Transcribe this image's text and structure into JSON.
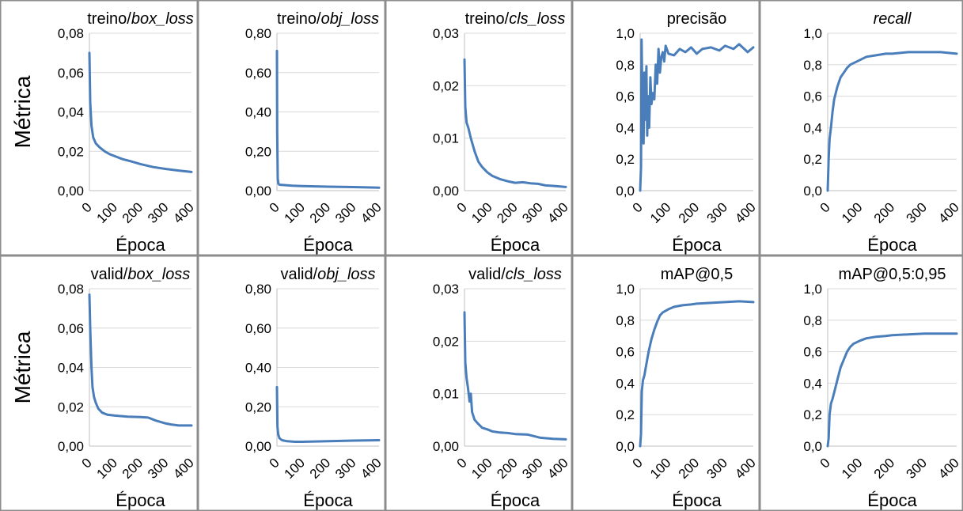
{
  "figure": {
    "xlabel": "Época",
    "ylabel": "Métrica"
  },
  "chart_data": [
    {
      "type": "line",
      "title": "treino/box_loss",
      "title_parts": [
        {
          "text": "treino/",
          "italic": false
        },
        {
          "text": "box_loss",
          "italic": true
        }
      ],
      "xlabel": "Época",
      "ylabel": "Métrica",
      "xlim": [
        0,
        400
      ],
      "xticks": [
        "0",
        "100",
        "200",
        "300",
        "400"
      ],
      "ylim": [
        0,
        0.08
      ],
      "yticks": [
        "0,00",
        "0,02",
        "0,04",
        "0,06",
        "0,08"
      ],
      "grid": true,
      "series": [
        {
          "x": [
            0,
            3,
            8,
            15,
            25,
            40,
            60,
            80,
            100,
            130,
            160,
            200,
            250,
            300,
            350,
            400
          ],
          "y": [
            0.07,
            0.045,
            0.033,
            0.027,
            0.024,
            0.022,
            0.02,
            0.0185,
            0.0175,
            0.016,
            0.015,
            0.0135,
            0.012,
            0.011,
            0.0102,
            0.0095
          ]
        }
      ]
    },
    {
      "type": "line",
      "title": "treino/obj_loss",
      "title_parts": [
        {
          "text": "treino/",
          "italic": false
        },
        {
          "text": "obj_loss",
          "italic": true
        }
      ],
      "xlabel": "Época",
      "ylabel": "",
      "xlim": [
        0,
        400
      ],
      "xticks": [
        "0",
        "100",
        "200",
        "300",
        "400"
      ],
      "ylim": [
        0,
        0.8
      ],
      "yticks": [
        "0,00",
        "0,20",
        "0,40",
        "0,60",
        "0,80"
      ],
      "grid": true,
      "series": [
        {
          "x": [
            0,
            1,
            3,
            6,
            10,
            30,
            60,
            100,
            200,
            300,
            400
          ],
          "y": [
            0.71,
            0.3,
            0.06,
            0.035,
            0.03,
            0.028,
            0.025,
            0.023,
            0.02,
            0.018,
            0.015
          ]
        }
      ]
    },
    {
      "type": "line",
      "title": "treino/cls_loss",
      "title_parts": [
        {
          "text": "treino/",
          "italic": false
        },
        {
          "text": "cls_loss",
          "italic": true
        }
      ],
      "xlabel": "Época",
      "ylabel": "",
      "xlim": [
        0,
        400
      ],
      "xticks": [
        "0",
        "100",
        "200",
        "300",
        "400"
      ],
      "ylim": [
        0,
        0.03
      ],
      "yticks": [
        "0,00",
        "0,01",
        "0,02",
        "0,03"
      ],
      "grid": true,
      "series": [
        {
          "x": [
            0,
            3,
            8,
            15,
            25,
            40,
            55,
            70,
            90,
            110,
            140,
            170,
            200,
            230,
            260,
            290,
            320,
            350,
            400
          ],
          "y": [
            0.025,
            0.016,
            0.013,
            0.012,
            0.01,
            0.0075,
            0.0055,
            0.0045,
            0.0035,
            0.0028,
            0.0022,
            0.0018,
            0.0015,
            0.0016,
            0.0014,
            0.0013,
            0.001,
            0.0009,
            0.0007
          ]
        }
      ]
    },
    {
      "type": "line",
      "title": "precisão",
      "title_parts": [
        {
          "text": "precisão",
          "italic": false
        }
      ],
      "xlabel": "Época",
      "ylabel": "",
      "xlim": [
        0,
        400
      ],
      "xticks": [
        "0",
        "100",
        "200",
        "300",
        "400"
      ],
      "ylim": [
        0,
        1.0
      ],
      "yticks": [
        "0,0",
        "0,2",
        "0,4",
        "0,6",
        "0,8",
        "1,0"
      ],
      "grid": true,
      "series": [
        {
          "x": [
            0,
            3,
            5,
            8,
            12,
            15,
            18,
            22,
            25,
            28,
            32,
            36,
            40,
            45,
            50,
            55,
            60,
            65,
            70,
            75,
            80,
            85,
            90,
            100,
            120,
            140,
            160,
            180,
            200,
            220,
            250,
            280,
            300,
            330,
            350,
            380,
            400
          ],
          "y": [
            0.0,
            0.15,
            0.96,
            0.55,
            0.3,
            0.75,
            0.45,
            0.79,
            0.35,
            0.6,
            0.4,
            0.72,
            0.55,
            0.62,
            0.58,
            0.8,
            0.68,
            0.9,
            0.75,
            0.85,
            0.88,
            0.82,
            0.92,
            0.87,
            0.86,
            0.9,
            0.88,
            0.91,
            0.87,
            0.9,
            0.91,
            0.89,
            0.92,
            0.9,
            0.93,
            0.88,
            0.91
          ]
        }
      ]
    },
    {
      "type": "line",
      "title": "recall",
      "title_parts": [
        {
          "text": "recall",
          "italic": true
        }
      ],
      "xlabel": "Época",
      "ylabel": "",
      "xlim": [
        0,
        400
      ],
      "xticks": [
        "0",
        "100",
        "200",
        "300",
        "400"
      ],
      "ylim": [
        0,
        1.0
      ],
      "yticks": [
        "0,0",
        "0,2",
        "0,4",
        "0,6",
        "0,8",
        "1,0"
      ],
      "grid": true,
      "series": [
        {
          "x": [
            0,
            3,
            6,
            10,
            15,
            20,
            25,
            30,
            40,
            50,
            60,
            70,
            80,
            100,
            120,
            150,
            180,
            200,
            250,
            300,
            350,
            400
          ],
          "y": [
            0.0,
            0.2,
            0.33,
            0.4,
            0.5,
            0.58,
            0.62,
            0.66,
            0.72,
            0.75,
            0.78,
            0.8,
            0.81,
            0.83,
            0.85,
            0.86,
            0.87,
            0.87,
            0.88,
            0.88,
            0.88,
            0.87
          ]
        }
      ]
    },
    {
      "type": "line",
      "title": "valid/box_loss",
      "title_parts": [
        {
          "text": "valid/",
          "italic": false
        },
        {
          "text": "box_loss",
          "italic": true
        }
      ],
      "xlabel": "Época",
      "ylabel": "Métrica",
      "xlim": [
        0,
        400
      ],
      "xticks": [
        "0",
        "100",
        "200",
        "300",
        "400"
      ],
      "ylim": [
        0,
        0.08
      ],
      "yticks": [
        "0,00",
        "0,02",
        "0,04",
        "0,06",
        "0,08"
      ],
      "grid": true,
      "series": [
        {
          "x": [
            0,
            3,
            8,
            12,
            18,
            25,
            35,
            50,
            70,
            100,
            150,
            200,
            230,
            260,
            300,
            320,
            350,
            400
          ],
          "y": [
            0.077,
            0.06,
            0.04,
            0.03,
            0.025,
            0.022,
            0.019,
            0.017,
            0.016,
            0.0155,
            0.015,
            0.0148,
            0.0145,
            0.013,
            0.0115,
            0.011,
            0.0105,
            0.0105
          ]
        }
      ]
    },
    {
      "type": "line",
      "title": "valid/obj_loss",
      "title_parts": [
        {
          "text": "valid/",
          "italic": false
        },
        {
          "text": "obj_loss",
          "italic": true
        }
      ],
      "xlabel": "Época",
      "ylabel": "",
      "xlim": [
        0,
        400
      ],
      "xticks": [
        "0",
        "100",
        "200",
        "300",
        "400"
      ],
      "ylim": [
        0,
        0.8
      ],
      "yticks": [
        "0,00",
        "0,20",
        "0,40",
        "0,60",
        "0,80"
      ],
      "grid": true,
      "series": [
        {
          "x": [
            0,
            2,
            5,
            10,
            20,
            40,
            70,
            100,
            200,
            300,
            400
          ],
          "y": [
            0.3,
            0.1,
            0.06,
            0.04,
            0.03,
            0.025,
            0.022,
            0.022,
            0.025,
            0.028,
            0.03
          ]
        }
      ]
    },
    {
      "type": "line",
      "title": "valid/cls_loss",
      "title_parts": [
        {
          "text": "valid/",
          "italic": false
        },
        {
          "text": "cls_loss",
          "italic": true
        }
      ],
      "xlabel": "Época",
      "ylabel": "",
      "xlim": [
        0,
        400
      ],
      "xticks": [
        "0",
        "100",
        "200",
        "300",
        "400"
      ],
      "ylim": [
        0,
        0.03
      ],
      "yticks": [
        "0,00",
        "0,01",
        "0,02",
        "0,03"
      ],
      "grid": true,
      "series": [
        {
          "x": [
            0,
            3,
            8,
            14,
            20,
            25,
            30,
            40,
            55,
            70,
            90,
            110,
            140,
            170,
            200,
            250,
            300,
            350,
            400
          ],
          "y": [
            0.0255,
            0.016,
            0.013,
            0.011,
            0.0085,
            0.01,
            0.0065,
            0.005,
            0.0042,
            0.0035,
            0.0032,
            0.0028,
            0.0026,
            0.0025,
            0.0023,
            0.0022,
            0.0016,
            0.0014,
            0.0013
          ]
        }
      ]
    },
    {
      "type": "line",
      "title": "mAP@0,5",
      "title_parts": [
        {
          "text": "mAP@0,5",
          "italic": false
        }
      ],
      "xlabel": "Época",
      "ylabel": "",
      "xlim": [
        0,
        400
      ],
      "xticks": [
        "0",
        "100",
        "200",
        "300",
        "400"
      ],
      "ylim": [
        0,
        1.0
      ],
      "yticks": [
        "0,0",
        "0,2",
        "0,4",
        "0,6",
        "0,8",
        "1,0"
      ],
      "grid": true,
      "series": [
        {
          "x": [
            0,
            3,
            6,
            10,
            15,
            20,
            25,
            30,
            40,
            50,
            60,
            70,
            80,
            100,
            120,
            150,
            180,
            200,
            250,
            300,
            350,
            400
          ],
          "y": [
            0.0,
            0.08,
            0.35,
            0.42,
            0.45,
            0.5,
            0.55,
            0.6,
            0.68,
            0.74,
            0.79,
            0.83,
            0.85,
            0.87,
            0.885,
            0.895,
            0.9,
            0.905,
            0.91,
            0.915,
            0.92,
            0.915
          ]
        }
      ]
    },
    {
      "type": "line",
      "title": "mAP@0,5:0,95",
      "title_parts": [
        {
          "text": "mAP@0,5:0,95",
          "italic": false
        }
      ],
      "xlabel": "Época",
      "ylabel": "",
      "xlim": [
        0,
        400
      ],
      "xticks": [
        "0",
        "100",
        "200",
        "300",
        "400"
      ],
      "ylim": [
        0,
        1.0
      ],
      "yticks": [
        "0,0",
        "0,2",
        "0,4",
        "0,6",
        "0,8",
        "1,0"
      ],
      "grid": true,
      "series": [
        {
          "x": [
            0,
            3,
            6,
            10,
            15,
            20,
            30,
            40,
            50,
            60,
            70,
            80,
            100,
            120,
            150,
            180,
            200,
            250,
            300,
            350,
            400
          ],
          "y": [
            0.0,
            0.05,
            0.2,
            0.27,
            0.3,
            0.34,
            0.42,
            0.5,
            0.55,
            0.6,
            0.63,
            0.65,
            0.67,
            0.685,
            0.695,
            0.7,
            0.705,
            0.71,
            0.715,
            0.715,
            0.715
          ]
        }
      ]
    }
  ]
}
